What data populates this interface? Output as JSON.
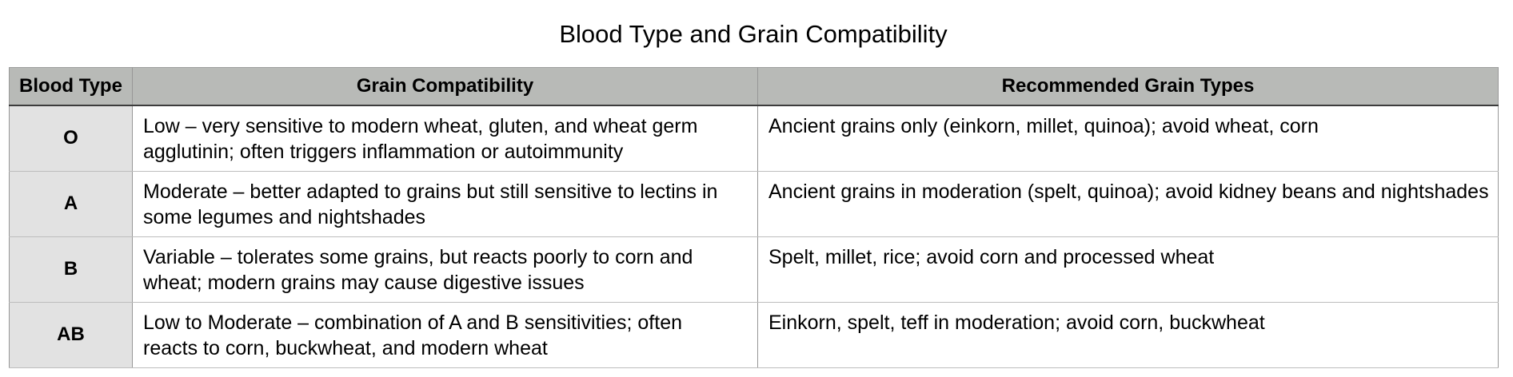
{
  "title": "Blood Type and Grain Compatibility",
  "table": {
    "columns": [
      "Blood Type",
      "Grain Compatibility",
      "Recommended Grain Types"
    ],
    "rows": [
      {
        "blood_type": "O",
        "compatibility": "Low – very sensitive to modern wheat, gluten, and wheat germ agglutinin; often triggers inflammation or autoimmunity",
        "recommended": "Ancient grains only (einkorn, millet, quinoa); avoid wheat, corn"
      },
      {
        "blood_type": "A",
        "compatibility": "Moderate – better adapted to grains but still sensitive to lectins in some legumes and nightshades",
        "recommended": "Ancient grains in moderation (spelt, quinoa); avoid kidney beans and nightshades"
      },
      {
        "blood_type": "B",
        "compatibility": "Variable – tolerates some grains, but reacts poorly to corn and wheat; modern grains may cause digestive issues",
        "recommended": "Spelt, millet, rice; avoid corn and processed wheat"
      },
      {
        "blood_type": "AB",
        "compatibility": "Low to Moderate – combination of A and B sensitivities; often reacts to corn, buckwheat, and modern wheat",
        "recommended": "Einkorn, spelt, teff in moderation; avoid corn, buckwheat"
      }
    ]
  },
  "colors": {
    "header_bg": "#b8bab7",
    "label_col_bg": "#e2e2e2",
    "border_outer": "#9e9e9e",
    "border_vertical": "#979797",
    "border_row": "#bdbdbd",
    "header_border_bottom": "#3c3c3c",
    "text": "#000000",
    "page_bg": "#ffffff"
  }
}
